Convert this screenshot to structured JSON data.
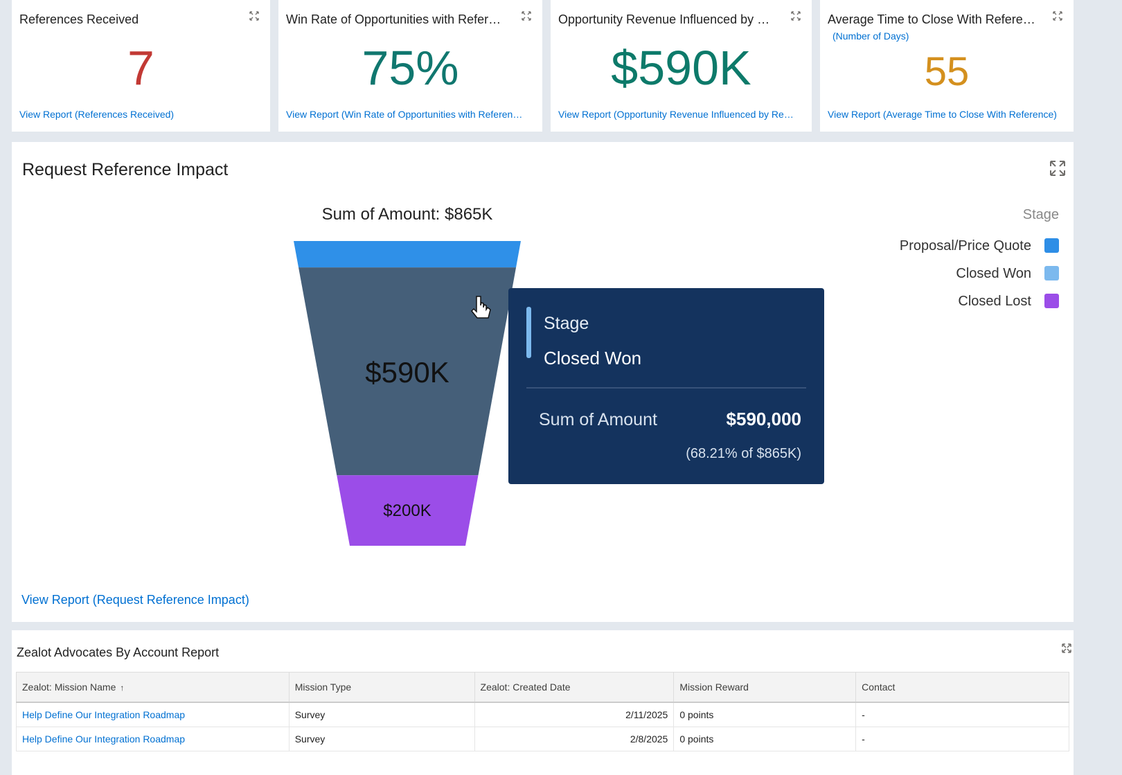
{
  "kpis": [
    {
      "title": "References Received",
      "value": "7",
      "color": "#c23934",
      "link": "View Report (References Received)"
    },
    {
      "title": "Win Rate of Opportunities with Refer…",
      "value": "75%",
      "color": "#10776f",
      "link": "View Report (Win Rate of Opportunities with Referen…"
    },
    {
      "title": "Opportunity Revenue Influenced by …",
      "value": "$590K",
      "color": "#0d7a6a",
      "link": "View Report (Opportunity Revenue Influenced by Re…"
    },
    {
      "title": "Average Time to Close With Refere…",
      "subtitle": "(Number of Days)",
      "value": "55",
      "color": "#d4901e",
      "link": "View Report (Average Time to Close With Reference)"
    }
  ],
  "chart_data": {
    "type": "funnel",
    "title": "Request Reference Impact",
    "total_label": "Sum of Amount: $865K",
    "legend_title": "Stage",
    "series": [
      {
        "name": "Proposal/Price Quote",
        "color": "#2e8ee6",
        "bar_color": "#2f90e8",
        "values": [
          75000
        ],
        "value_labels": [
          null
        ]
      },
      {
        "name": "Closed Won",
        "color": "#7cb9ee",
        "bar_color": "#455f79",
        "values": [
          590000
        ],
        "value_labels": [
          "$590K"
        ]
      },
      {
        "name": "Closed Lost",
        "color": "#9b4de8",
        "bar_color": "#9b4de8",
        "values": [
          200000
        ],
        "value_labels": [
          "$200K"
        ]
      }
    ],
    "tooltip": {
      "label": "Stage",
      "stage": "Closed Won",
      "measure": "Sum of Amount",
      "amount": "$590,000",
      "share": "(68.21% of $865K)"
    },
    "link": "View Report (Request Reference Impact)"
  },
  "table": {
    "title": "Zealot Advocates By Account Report",
    "headers": [
      "Zealot: Mission Name",
      "Mission Type",
      "Zealot: Created Date",
      "Mission Reward",
      "Contact"
    ],
    "rows": [
      [
        "Help Define Our Integration Roadmap",
        "Survey",
        "2/11/2025",
        "0 points",
        "-"
      ],
      [
        "Help Define Our Integration Roadmap",
        "Survey",
        "2/8/2025",
        "0 points",
        "-"
      ]
    ]
  }
}
